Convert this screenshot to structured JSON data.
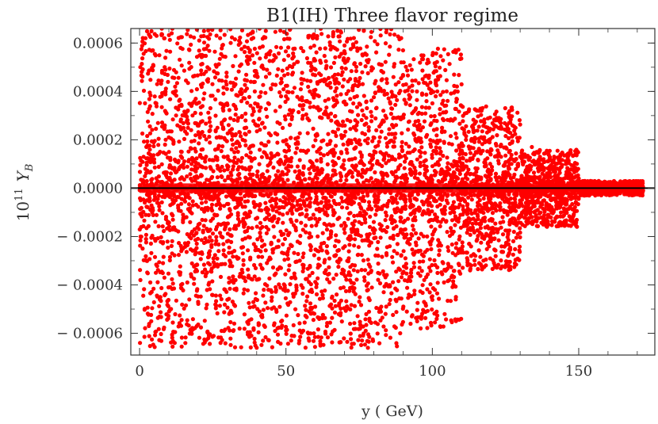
{
  "chart_data": {
    "type": "scatter",
    "title": "B1(IH) Three flavor regime",
    "xlabel": "y ( GeV)",
    "ylabel": {
      "base": "10",
      "exponent": "11",
      "symbol": "Y",
      "subscript": "B"
    },
    "xlim": [
      -3,
      176
    ],
    "ylim": [
      -0.00069,
      0.00066
    ],
    "x_ticks": [
      0,
      50,
      100,
      150
    ],
    "x_tick_labels": [
      "0",
      "50",
      "100",
      "150"
    ],
    "y_ticks": [
      0.0006,
      0.0004,
      0.0002,
      0.0,
      -0.0002,
      -0.0004,
      -0.0006
    ],
    "y_tick_labels": [
      "0.0006",
      "0.0004",
      "0.0002",
      "0.0000",
      "− 0.0002",
      "− 0.0004",
      "− 0.0006"
    ],
    "reference_line_y": 0.0,
    "grid": false,
    "legend": "none",
    "marker_color": "#ff0000",
    "line_color": "#000000",
    "series": [
      {
        "points": [
          [
            2,
            0.00062
          ],
          [
            4,
            -0.00055
          ],
          [
            6,
            0.00043
          ],
          [
            8,
            -0.00031
          ],
          [
            10,
            0.00021
          ],
          [
            12,
            -0.00064
          ],
          [
            14,
            0.00058
          ],
          [
            16,
            -0.00012
          ],
          [
            18,
            0.00035
          ],
          [
            20,
            -0.00047
          ],
          [
            22,
            0.00065
          ],
          [
            24,
            -0.00026
          ],
          [
            26,
            0.00051
          ],
          [
            28,
            -0.00059
          ],
          [
            30,
            9e-05
          ],
          [
            32,
            -0.00038
          ],
          [
            34,
            0.00061
          ],
          [
            36,
            -0.00018
          ],
          [
            38,
            0.00044
          ],
          [
            40,
            -0.00066
          ],
          [
            42,
            0.00027
          ],
          [
            44,
            -0.00042
          ],
          [
            46,
            0.00055
          ],
          [
            48,
            -5e-05
          ],
          [
            50,
            0.00038
          ],
          [
            52,
            -0.00061
          ],
          [
            54,
            0.00019
          ],
          [
            56,
            -0.00033
          ],
          [
            58,
            0.00063
          ],
          [
            60,
            -0.00049
          ],
          [
            62,
            0.00011
          ],
          [
            64,
            -0.00057
          ],
          [
            66,
            0.00046
          ],
          [
            68,
            -0.00022
          ],
          [
            70,
            0.00059
          ],
          [
            72,
            -0.00036
          ],
          [
            74,
            0.00024
          ],
          [
            76,
            -0.00063
          ],
          [
            78,
            0.00052
          ],
          [
            80,
            -0.00014
          ],
          [
            82,
            0.00041
          ],
          [
            84,
            -0.00052
          ],
          [
            86,
            0.00033
          ],
          [
            88,
            -0.00027
          ],
          [
            90,
            0.00057
          ],
          [
            92,
            -0.00044
          ],
          [
            94,
            0.00016
          ],
          [
            96,
            -0.00058
          ],
          [
            98,
            0.00036
          ],
          [
            100,
            -0.00021
          ],
          [
            102,
            0.00045
          ],
          [
            104,
            -0.00039
          ],
          [
            106,
            0.00028
          ],
          [
            108,
            -0.00046
          ],
          [
            110,
            0.00034
          ],
          [
            112,
            -0.00015
          ],
          [
            114,
            0.00024
          ],
          [
            116,
            -0.00031
          ],
          [
            118,
            0.00019
          ],
          [
            120,
            -0.00022
          ],
          [
            122,
            0.00029
          ],
          [
            124,
            -0.00012
          ],
          [
            126,
            0.00031
          ],
          [
            128,
            -8e-05
          ],
          [
            130,
            0.00013
          ],
          [
            132,
            -0.00011
          ],
          [
            134,
            0.00017
          ],
          [
            136,
            -9e-05
          ],
          [
            138,
            0.00012
          ],
          [
            140,
            -7e-05
          ],
          [
            142,
            8e-05
          ],
          [
            144,
            -5e-05
          ],
          [
            146,
            6e-05
          ],
          [
            148,
            -4e-05
          ],
          [
            150,
            4e-05
          ],
          [
            152,
            -3e-05
          ],
          [
            154,
            3e-05
          ],
          [
            156,
            -2e-05
          ],
          [
            160,
            2e-05
          ],
          [
            164,
            -1e-05
          ],
          [
            168,
            1e-05
          ],
          [
            172,
            -1e-05
          ],
          [
            7,
            0.00015
          ],
          [
            17,
            -0.0002
          ],
          [
            27,
            8e-05
          ],
          [
            37,
            -0.00011
          ],
          [
            47,
            0.00014
          ],
          [
            57,
            -9e-05
          ],
          [
            67,
            0.0001
          ],
          [
            77,
            -0.00013
          ],
          [
            87,
            0.00012
          ],
          [
            97,
            -0.0001
          ],
          [
            107,
            9e-05
          ],
          [
            117,
            -8e-05
          ]
        ],
        "density": [
          {
            "x": [
              0,
              30
            ],
            "amp": 0.00066
          },
          {
            "x": [
              30,
              60
            ],
            "amp": 0.00066
          },
          {
            "x": [
              60,
              90
            ],
            "amp": 0.00066
          },
          {
            "x": [
              90,
              110
            ],
            "amp": 0.00058
          },
          {
            "x": [
              110,
              130
            ],
            "amp": 0.00034
          },
          {
            "x": [
              130,
              150
            ],
            "amp": 0.00016
          },
          {
            "x": [
              150,
              172
            ],
            "amp": 3e-05
          }
        ]
      }
    ]
  }
}
